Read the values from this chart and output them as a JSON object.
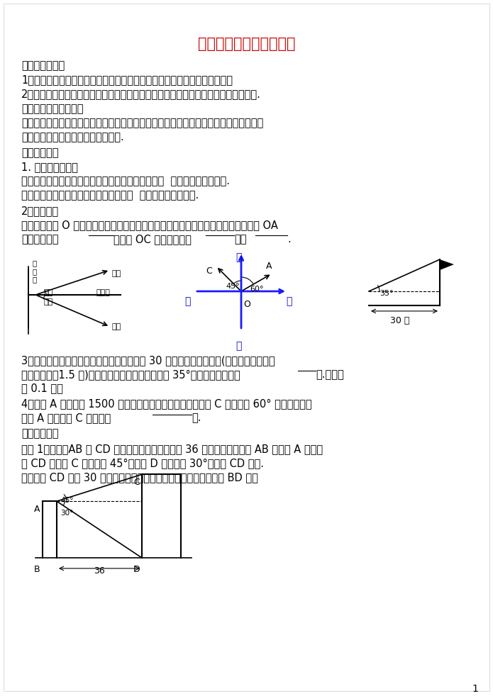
{
  "title": "用锐角三角函数解决问题",
  "title_color": "#CC0000",
  "bg_color": "#FFFFFF",
  "text_color": "#000000",
  "content_blocks": [
    {
      "type": "section",
      "text": "一、学习目标："
    },
    {
      "type": "body",
      "text": "1．了解仰角、俯角、方位角概念，准确把握这些概念来解决一些实际问题；"
    },
    {
      "type": "body",
      "text": "2．经历探索实际问题的求解过程，进一步体会三角函数在解决实际问题过程中的应用."
    },
    {
      "type": "section",
      "text": "二、学习重点、难点："
    },
    {
      "type": "body_wrap",
      "text": "比较熟练的应用解直角三角形的知识解决与仰角、俯角、方位角有关的实际问题，培养学生把实际问题转化为数学问题的能力."
    },
    {
      "type": "section",
      "text": "三、预习体验"
    },
    {
      "type": "subsection",
      "text": "1. 认清俯角与仰角"
    },
    {
      "type": "body",
      "text": "如图所示：从低处观测高处的目标时，视线与水平线  所成的锐角称为仰角."
    },
    {
      "type": "body",
      "text": "从高处观测低处的目标时，视线与水平线  所成的锐角称为俯角."
    },
    {
      "type": "subsection",
      "text": "2．方位角："
    },
    {
      "type": "body_wrap",
      "text": "如图所示，从 O 点出发的视线与铅垂线所成的锐角，叫做观测的方位角．比如：射线 OA 的方向为北偏______；射线 OC 的方向为北偏______或者______."
    }
  ],
  "problem3": "3．一次数学活动课中，小明在距离旗杆底部 30 米的地方，用测角仪(测量角度的仪器，且测角仪高为1.5 米)观测旗杆的顶端，测得仰角为 35°，则旗杆的高度为____米.（精确到 0.1 米）",
  "problem4": "4．飞机 A 的高度为 1500 米，此时从飞机上观测地面控制点 C 在南偏西 60° 的方向上，则飞机 A 到控制点 C 的距离为________米.",
  "section4": "四、问题探究",
  "problem_explore": "问题 1、如图，AB 和 CD 是同一地面上的两座相距 36 米的楼房，在楼房 AB 的楼顶 A 点测得楼 CD 的楼顶 C 的仰角为 45°，楼底 D 的俯角为 30°．求楼 CD 的高.",
  "problem_explore2": "若已知楼 CD 高为 30 米，其他条件不变，你能求出两楼之间的距离 BD 吗？",
  "page_num": "1"
}
